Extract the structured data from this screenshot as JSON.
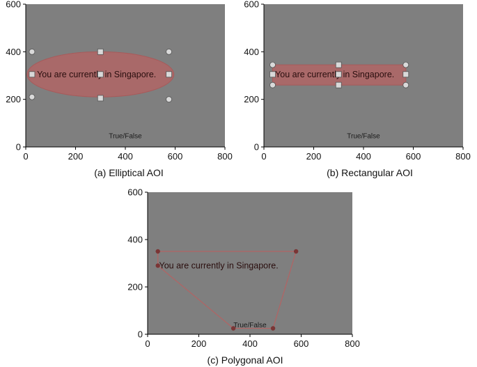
{
  "stimulus": {
    "sentence": "You are currently in Singapore.",
    "prompt": "True/False"
  },
  "axes": {
    "xlim": [
      0,
      800
    ],
    "ylim": [
      0,
      600
    ],
    "xticks": [
      "0",
      "200",
      "400",
      "600",
      "800"
    ],
    "yticks": [
      "0",
      "200",
      "400",
      "600"
    ]
  },
  "colors": {
    "background": "#7f7f7f",
    "aoi_fill": "#b06565",
    "aoi_stroke": "#a85a5a",
    "handle_fill": "#d9d9d9",
    "vertex": "#7a3535"
  },
  "panels": [
    {
      "id": "a",
      "caption": "(a) Elliptical AOI",
      "aoi": {
        "type": "ellipse",
        "cx": 300,
        "cy": 305,
        "rx": 295,
        "ry": 95
      },
      "handles_square": [
        [
          300,
          400
        ],
        [
          300,
          205
        ],
        [
          25,
          305
        ],
        [
          575,
          305
        ],
        [
          300,
          305
        ]
      ],
      "handles_round": [
        [
          25,
          400
        ],
        [
          575,
          400
        ],
        [
          25,
          210
        ],
        [
          575,
          200
        ]
      ]
    },
    {
      "id": "b",
      "caption": "(b) Rectangular AOI",
      "aoi": {
        "type": "rect",
        "x0": 35,
        "x1": 570,
        "y0": 260,
        "y1": 345
      },
      "handles_square": [
        [
          35,
          305
        ],
        [
          570,
          305
        ],
        [
          300,
          345
        ],
        [
          300,
          260
        ],
        [
          300,
          305
        ]
      ],
      "handles_round": [
        [
          35,
          345
        ],
        [
          570,
          345
        ],
        [
          35,
          260
        ],
        [
          570,
          260
        ]
      ]
    },
    {
      "id": "c",
      "caption": "(c) Polygonal AOI",
      "aoi": {
        "type": "polygon",
        "points": [
          [
            40,
            350
          ],
          [
            580,
            350
          ],
          [
            490,
            25
          ],
          [
            335,
            25
          ],
          [
            40,
            290
          ]
        ]
      }
    }
  ]
}
